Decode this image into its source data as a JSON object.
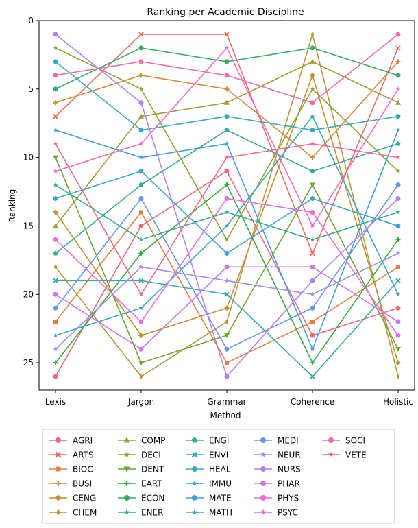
{
  "chart_data": {
    "type": "line",
    "title": "Ranking per Academic Discipline",
    "xlabel": "Method",
    "ylabel": "Ranking",
    "categories": [
      "Lexis",
      "Jargon",
      "Grammar",
      "Coherence",
      "Holistic"
    ],
    "y_ticks": [
      0,
      5,
      10,
      15,
      20,
      25
    ],
    "ylim": [
      27,
      0
    ],
    "y_inverted": true,
    "legend_position": "bottom-outside",
    "legend_columns": 5,
    "series": [
      {
        "name": "AGRI",
        "color": "#f0677b",
        "marker": "circle",
        "values": [
          26,
          15,
          11,
          23,
          21
        ]
      },
      {
        "name": "ARTS",
        "color": "#ef6b62",
        "marker": "x",
        "values": [
          7,
          1,
          1,
          17,
          2
        ]
      },
      {
        "name": "BIOC",
        "color": "#e57e3f",
        "marker": "square",
        "values": [
          22,
          14,
          25,
          22,
          18
        ]
      },
      {
        "name": "BUSI",
        "color": "#d6883a",
        "marker": "plus",
        "values": [
          6,
          4,
          5,
          10,
          3
        ]
      },
      {
        "name": "CENG",
        "color": "#c48e34",
        "marker": "diamond",
        "values": [
          14,
          23,
          21,
          4,
          25
        ]
      },
      {
        "name": "CHEM",
        "color": "#b7963a",
        "marker": "thin_diamond",
        "values": [
          18,
          26,
          22,
          1,
          26
        ]
      },
      {
        "name": "COMP",
        "color": "#a59b34",
        "marker": "triangle_up",
        "values": [
          15,
          7,
          6,
          3,
          6
        ]
      },
      {
        "name": "DECI",
        "color": "#8fa232",
        "marker": "star",
        "values": [
          2,
          5,
          16,
          5,
          11
        ]
      },
      {
        "name": "DENT",
        "color": "#6ca530",
        "marker": "triangle_down",
        "values": [
          10,
          25,
          23,
          12,
          24
        ]
      },
      {
        "name": "EART",
        "color": "#3aac3a",
        "marker": "plus",
        "values": [
          25,
          17,
          12,
          25,
          16
        ]
      },
      {
        "name": "ECON",
        "color": "#35ad63",
        "marker": "circle",
        "values": [
          5,
          2,
          3,
          2,
          4
        ]
      },
      {
        "name": "ENER",
        "color": "#36ad81",
        "marker": "star",
        "values": [
          12,
          16,
          14,
          16,
          14
        ]
      },
      {
        "name": "ENGI",
        "color": "#37ab98",
        "marker": "pentagon",
        "values": [
          17,
          12,
          8,
          11,
          9
        ]
      },
      {
        "name": "ENVI",
        "color": "#38aaa9",
        "marker": "x",
        "values": [
          19,
          19,
          20,
          26,
          19
        ]
      },
      {
        "name": "HEAL",
        "color": "#39a9b9",
        "marker": "circle",
        "values": [
          3,
          8,
          7,
          8,
          7
        ]
      },
      {
        "name": "IMMU",
        "color": "#3ba6c3",
        "marker": "star",
        "values": [
          23,
          21,
          15,
          7,
          20
        ]
      },
      {
        "name": "MATE",
        "color": "#3da3cf",
        "marker": "hexagon",
        "values": [
          13,
          11,
          17,
          13,
          15
        ]
      },
      {
        "name": "MATH",
        "color": "#3f9ee0",
        "marker": "star",
        "values": [
          8,
          10,
          9,
          24,
          8
        ]
      },
      {
        "name": "MEDI",
        "color": "#6b94ee",
        "marker": "circle",
        "values": [
          21,
          13,
          24,
          21,
          12
        ]
      },
      {
        "name": "NEUR",
        "color": "#9b8ff0",
        "marker": "star",
        "values": [
          24,
          18,
          19,
          20,
          17
        ]
      },
      {
        "name": "NURS",
        "color": "#b381ec",
        "marker": "circle",
        "values": [
          1,
          6,
          26,
          19,
          13
        ]
      },
      {
        "name": "PHAR",
        "color": "#ce76e8",
        "marker": "circle",
        "values": [
          20,
          24,
          18,
          18,
          22
        ]
      },
      {
        "name": "PHYS",
        "color": "#e76de2",
        "marker": "circle",
        "values": [
          16,
          22,
          13,
          14,
          23
        ]
      },
      {
        "name": "PSYC",
        "color": "#ef6bc9",
        "marker": "star",
        "values": [
          11,
          9,
          2,
          15,
          5
        ]
      },
      {
        "name": "SOCI",
        "color": "#ef6aab",
        "marker": "circle",
        "values": [
          4,
          3,
          4,
          6,
          1
        ]
      },
      {
        "name": "VETE",
        "color": "#ef6b8d",
        "marker": "star",
        "values": [
          9,
          20,
          10,
          9,
          10
        ]
      }
    ]
  }
}
